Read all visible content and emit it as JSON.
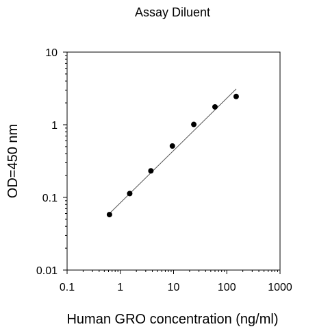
{
  "chart_data": {
    "type": "scatter",
    "title": "Assay Diluent",
    "xlabel": "Human GRO concentration (ng/ml)",
    "ylabel": "OD=450 nm",
    "x_scale": "log",
    "y_scale": "log",
    "xlim": [
      0.1,
      1000
    ],
    "ylim": [
      0.01,
      10
    ],
    "x_ticks": [
      0.1,
      1,
      10,
      100,
      1000
    ],
    "x_tick_labels": [
      "0.1",
      "1",
      "10",
      "100",
      "1000"
    ],
    "y_ticks": [
      0.01,
      0.1,
      1,
      10
    ],
    "y_tick_labels": [
      "0.01",
      "0.1",
      "1",
      "10"
    ],
    "grid": false,
    "series": [
      {
        "x": [
          0.625,
          1.5,
          3.75,
          9.5,
          24,
          60,
          150
        ],
        "y": [
          0.058,
          0.113,
          0.232,
          0.51,
          1.01,
          1.76,
          2.45
        ],
        "color": "#000000"
      }
    ],
    "fit_line": {
      "x": [
        0.625,
        150
      ],
      "y": [
        0.06,
        3.1
      ],
      "color": "#555555"
    }
  }
}
